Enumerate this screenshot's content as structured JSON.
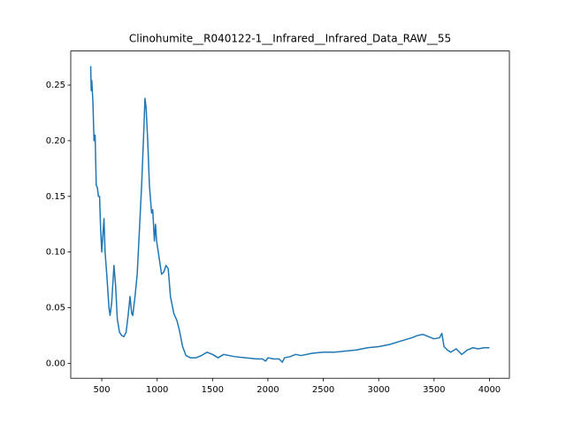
{
  "chart_data": {
    "type": "line",
    "title": "Clinohumite__R040122-1__Infrared__Infrared_Data_RAW__55",
    "x": [
      400,
      405,
      410,
      420,
      430,
      440,
      450,
      460,
      470,
      480,
      490,
      500,
      510,
      520,
      530,
      545,
      565,
      575,
      590,
      610,
      625,
      640,
      660,
      680,
      700,
      720,
      740,
      755,
      770,
      780,
      800,
      820,
      840,
      860,
      880,
      890,
      900,
      915,
      930,
      950,
      960,
      975,
      985,
      995,
      1010,
      1040,
      1060,
      1080,
      1100,
      1120,
      1150,
      1180,
      1200,
      1230,
      1260,
      1300,
      1350,
      1400,
      1450,
      1500,
      1550,
      1600,
      1650,
      1700,
      1800,
      1900,
      1950,
      1980,
      2000,
      2050,
      2100,
      2130,
      2150,
      2200,
      2250,
      2300,
      2400,
      2500,
      2600,
      2700,
      2800,
      2900,
      3000,
      3100,
      3200,
      3300,
      3350,
      3400,
      3450,
      3500,
      3550,
      3570,
      3590,
      3620,
      3650,
      3700,
      3750,
      3800,
      3850,
      3900,
      3950,
      4000
    ],
    "series": [
      {
        "color": "#1f77b4",
        "values": [
          0.267,
          0.245,
          0.254,
          0.235,
          0.2,
          0.205,
          0.16,
          0.158,
          0.15,
          0.15,
          0.12,
          0.1,
          0.115,
          0.13,
          0.1,
          0.08,
          0.05,
          0.043,
          0.055,
          0.088,
          0.07,
          0.04,
          0.028,
          0.025,
          0.024,
          0.028,
          0.045,
          0.06,
          0.045,
          0.043,
          0.06,
          0.08,
          0.12,
          0.16,
          0.21,
          0.238,
          0.23,
          0.2,
          0.16,
          0.135,
          0.138,
          0.11,
          0.125,
          0.11,
          0.1,
          0.08,
          0.082,
          0.088,
          0.085,
          0.06,
          0.045,
          0.038,
          0.03,
          0.015,
          0.007,
          0.005,
          0.005,
          0.007,
          0.01,
          0.008,
          0.005,
          0.008,
          0.007,
          0.006,
          0.005,
          0.004,
          0.004,
          0.002,
          0.005,
          0.004,
          0.004,
          0.001,
          0.005,
          0.006,
          0.008,
          0.007,
          0.009,
          0.01,
          0.01,
          0.011,
          0.012,
          0.014,
          0.015,
          0.017,
          0.02,
          0.023,
          0.025,
          0.026,
          0.024,
          0.022,
          0.023,
          0.027,
          0.015,
          0.012,
          0.01,
          0.013,
          0.008,
          0.012,
          0.014,
          0.013,
          0.014,
          0.014
        ]
      }
    ],
    "xlim": [
      220,
      4180
    ],
    "ylim": [
      -0.0134,
      0.2806
    ],
    "xticks": [
      500,
      1000,
      1500,
      2000,
      2500,
      3000,
      3500,
      4000
    ],
    "yticks": [
      {
        "value": 0,
        "label": "0.00"
      },
      {
        "value": 0.05,
        "label": "0.05"
      },
      {
        "value": 0.1,
        "label": "0.10"
      },
      {
        "value": 0.15,
        "label": "0.15"
      },
      {
        "value": 0.2,
        "label": "0.20"
      },
      {
        "value": 0.25,
        "label": "0.25"
      }
    ]
  }
}
